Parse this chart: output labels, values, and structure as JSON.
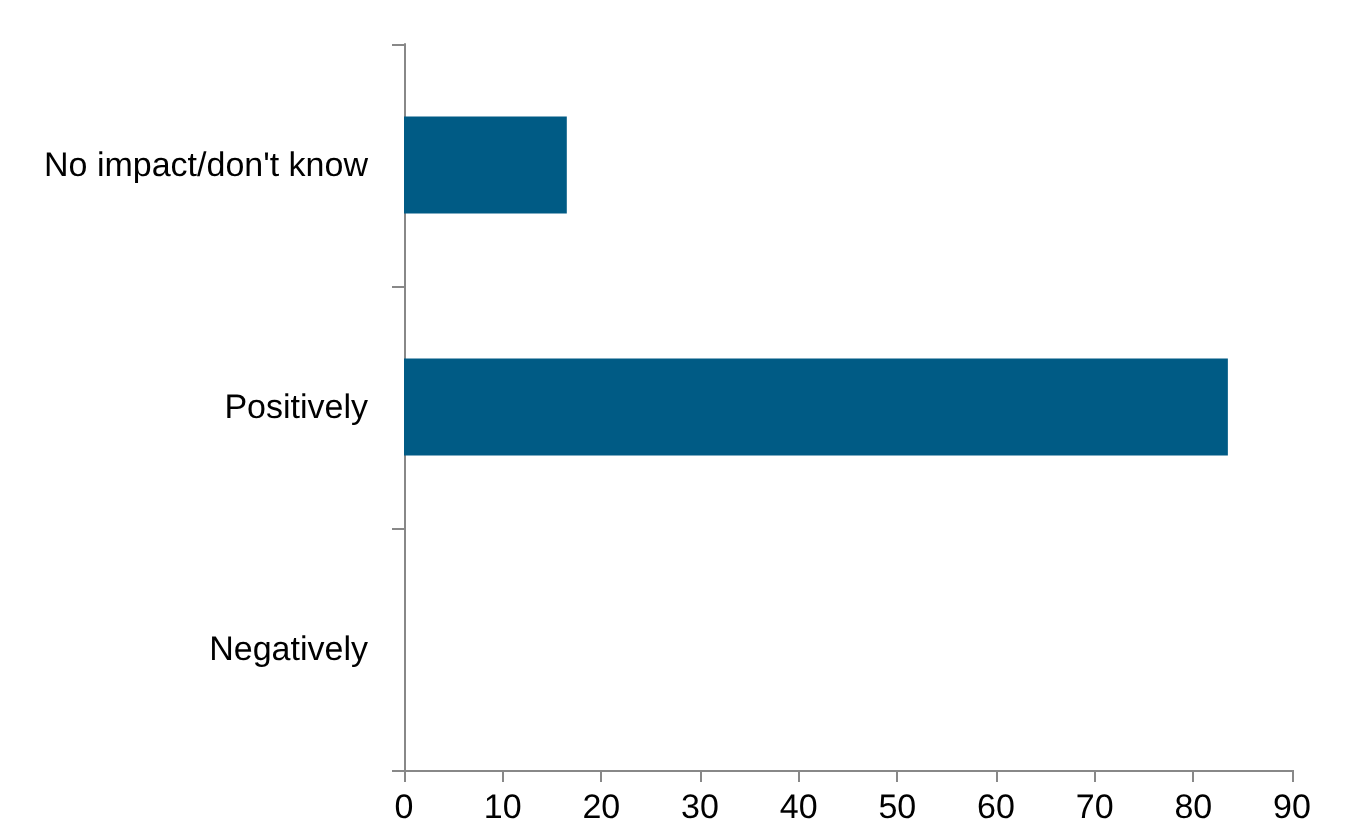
{
  "chart_data": {
    "type": "bar",
    "orientation": "horizontal",
    "categories": [
      "No impact/don't know",
      "Positively",
      "Negatively"
    ],
    "values": [
      16.5,
      83.5,
      0
    ],
    "color": "#005b85",
    "xlim": [
      0,
      90
    ],
    "xticks": [
      0,
      10,
      20,
      30,
      40,
      50,
      60,
      70,
      80,
      90
    ],
    "grid": false
  }
}
